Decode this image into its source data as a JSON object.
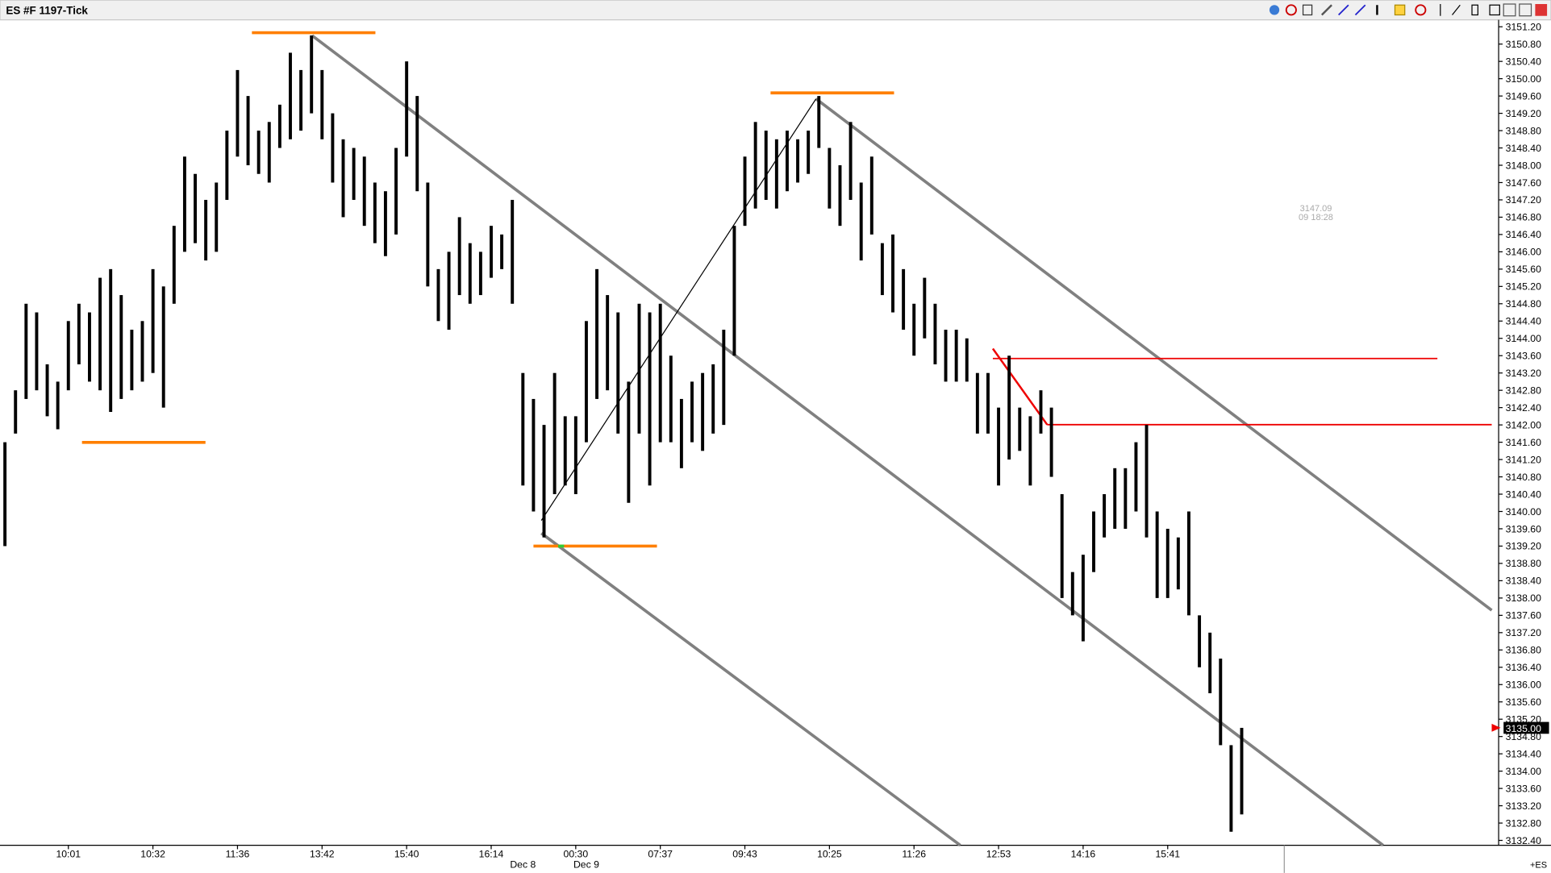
{
  "chart_data": {
    "type": "range-bar",
    "title": "ES #F 1197-Tick",
    "footer": "+ES",
    "annotation": [
      "3147.09",
      "09 18:28"
    ],
    "last_price": {
      "value": 3135,
      "label": "3135.00"
    },
    "color": "#000000",
    "ylim": [
      3132.31,
      3151.36
    ],
    "yticks": [
      {
        "value": 3132.4,
        "label": "3132.40"
      },
      {
        "value": 3132.8,
        "label": "3132.80"
      },
      {
        "value": 3133.2,
        "label": "3133.20"
      },
      {
        "value": 3133.6,
        "label": "3133.60"
      },
      {
        "value": 3134,
        "label": "3134.00"
      },
      {
        "value": 3134.4,
        "label": "3134.40"
      },
      {
        "value": 3134.8,
        "label": "3134.80"
      },
      {
        "value": 3135.2,
        "label": "3135.20"
      },
      {
        "value": 3135.6,
        "label": "3135.60"
      },
      {
        "value": 3136,
        "label": "3136.00"
      },
      {
        "value": 3136.4,
        "label": "3136.40"
      },
      {
        "value": 3136.8,
        "label": "3136.80"
      },
      {
        "value": 3137.2,
        "label": "3137.20"
      },
      {
        "value": 3137.6,
        "label": "3137.60"
      },
      {
        "value": 3138,
        "label": "3138.00"
      },
      {
        "value": 3138.4,
        "label": "3138.40"
      },
      {
        "value": 3138.8,
        "label": "3138.80"
      },
      {
        "value": 3139.2,
        "label": "3139.20"
      },
      {
        "value": 3139.6,
        "label": "3139.60"
      },
      {
        "value": 3140,
        "label": "3140.00"
      },
      {
        "value": 3140.4,
        "label": "3140.40"
      },
      {
        "value": 3140.8,
        "label": "3140.80"
      },
      {
        "value": 3141.2,
        "label": "3141.20"
      },
      {
        "value": 3141.6,
        "label": "3141.60"
      },
      {
        "value": 3142,
        "label": "3142.00"
      },
      {
        "value": 3142.4,
        "label": "3142.40"
      },
      {
        "value": 3142.8,
        "label": "3142.80"
      },
      {
        "value": 3143.2,
        "label": "3143.20"
      },
      {
        "value": 3143.6,
        "label": "3143.60"
      },
      {
        "value": 3144,
        "label": "3144.00"
      },
      {
        "value": 3144.4,
        "label": "3144.40"
      },
      {
        "value": 3144.8,
        "label": "3144.80"
      },
      {
        "value": 3145.2,
        "label": "3145.20"
      },
      {
        "value": 3145.6,
        "label": "3145.60"
      },
      {
        "value": 3146,
        "label": "3146.00"
      },
      {
        "value": 3146.4,
        "label": "3146.40"
      },
      {
        "value": 3146.8,
        "label": "3146.80"
      },
      {
        "value": 3147.2,
        "label": "3147.20"
      },
      {
        "value": 3147.6,
        "label": "3147.60"
      },
      {
        "value": 3148,
        "label": "3148.00"
      },
      {
        "value": 3148.4,
        "label": "3148.40"
      },
      {
        "value": 3148.8,
        "label": "3148.80"
      },
      {
        "value": 3149.2,
        "label": "3149.20"
      },
      {
        "value": 3149.6,
        "label": "3149.60"
      },
      {
        "value": 3150,
        "label": "3150.00"
      },
      {
        "value": 3150.4,
        "label": "3150.40"
      },
      {
        "value": 3150.8,
        "label": "3150.80"
      },
      {
        "value": 3151.2,
        "label": "3151.20"
      }
    ],
    "categories": [
      null,
      null,
      null,
      null,
      null,
      null,
      "10:01",
      null,
      null,
      null,
      null,
      null,
      null,
      null,
      "10:32",
      null,
      null,
      null,
      null,
      null,
      null,
      null,
      "11:36",
      null,
      null,
      null,
      null,
      null,
      null,
      null,
      "13:42",
      null,
      null,
      null,
      null,
      null,
      null,
      null,
      "15:40",
      null,
      null,
      null,
      null,
      null,
      null,
      null,
      "16:14",
      null,
      null,
      null,
      null,
      null,
      null,
      null,
      "00:30",
      null,
      null,
      null,
      null,
      null,
      null,
      null,
      "07:37",
      null,
      null,
      null,
      null,
      null,
      null,
      null,
      "09:43",
      null,
      null,
      null,
      null,
      null,
      null,
      null,
      "10:25",
      null,
      null,
      null,
      null,
      null,
      null,
      null,
      "11:26",
      null,
      null,
      null,
      null,
      null,
      null,
      null,
      "12:53",
      null,
      null,
      null,
      null,
      null,
      null,
      null,
      "14:16",
      null,
      null,
      null,
      null,
      null,
      null,
      null,
      "15:41",
      null,
      null,
      null,
      null,
      null,
      null,
      null
    ],
    "dates": [
      null,
      null,
      null,
      null,
      null,
      null,
      null,
      null,
      null,
      null,
      null,
      null,
      null,
      null,
      null,
      null,
      null,
      null,
      null,
      null,
      null,
      null,
      null,
      null,
      null,
      null,
      null,
      null,
      null,
      null,
      null,
      null,
      null,
      null,
      null,
      null,
      null,
      null,
      null,
      null,
      null,
      null,
      null,
      null,
      null,
      null,
      null,
      null,
      null,
      "Dec 8",
      null,
      null,
      null,
      null,
      null,
      "Dec 9",
      null,
      null,
      null,
      null,
      null,
      null,
      null,
      null,
      null,
      null,
      null,
      null,
      null,
      null,
      null,
      null,
      null,
      null,
      null,
      null,
      null,
      null,
      null,
      null,
      null,
      null,
      null,
      null,
      null,
      null,
      null,
      null,
      null,
      null,
      null,
      null,
      null,
      null,
      null,
      null,
      null,
      null,
      null,
      null,
      null,
      null,
      null,
      null,
      null,
      null,
      null,
      null,
      null,
      null,
      null,
      null,
      null,
      null,
      null,
      null,
      null,
      null
    ],
    "series": [
      {
        "name": "High",
        "values": [
          3141.6,
          3142.8,
          3144.8,
          3144.6,
          3143.4,
          3143.0,
          3144.4,
          3144.8,
          3144.6,
          3145.4,
          3145.6,
          3145.0,
          3144.2,
          3144.4,
          3145.6,
          3145.2,
          3146.6,
          3148.2,
          3147.8,
          3147.2,
          3147.6,
          3148.8,
          3150.2,
          3149.6,
          3148.8,
          3149.0,
          3149.4,
          3150.6,
          3150.2,
          3151.0,
          3150.2,
          3149.2,
          3148.6,
          3148.4,
          3148.2,
          3147.6,
          3147.4,
          3148.4,
          3150.4,
          3149.6,
          3147.6,
          3145.6,
          3146.0,
          3146.8,
          3146.2,
          3146.0,
          3146.6,
          3146.4,
          3147.2,
          3143.2,
          3142.6,
          3142.0,
          3143.2,
          3142.2,
          3142.2,
          3144.4,
          3145.6,
          3145.0,
          3144.6,
          3143.0,
          3144.8,
          3144.6,
          3144.8,
          3143.6,
          3142.6,
          3143.0,
          3143.2,
          3143.4,
          3144.2,
          3146.6,
          3148.2,
          3149.0,
          3148.8,
          3148.6,
          3148.8,
          3148.6,
          3148.8,
          3149.6,
          3148.4,
          3148.0,
          3149.0,
          3147.6,
          3148.2,
          3146.2,
          3146.4,
          3145.6,
          3144.8,
          3145.4,
          3144.8,
          3144.2,
          3144.2,
          3144.0,
          3143.2,
          3143.2,
          3142.4,
          3143.6,
          3142.4,
          3142.2,
          3142.8,
          3142.4,
          3140.4,
          3138.6,
          3139.0,
          3140.0,
          3140.4,
          3141.0,
          3141.0,
          3141.6,
          3142.0,
          3140.0,
          3139.6,
          3139.4,
          3140.0,
          3137.6,
          3137.2,
          3136.6,
          3134.6,
          3135.0
        ]
      },
      {
        "name": "Low",
        "values": [
          3139.2,
          3141.8,
          3142.6,
          3142.8,
          3142.2,
          3141.9,
          3142.8,
          3143.4,
          3143.0,
          3142.8,
          3142.3,
          3142.6,
          3142.8,
          3143.0,
          3143.2,
          3142.4,
          3144.8,
          3146.0,
          3146.2,
          3145.8,
          3146.0,
          3147.2,
          3148.2,
          3148.0,
          3147.8,
          3147.6,
          3148.4,
          3148.6,
          3148.8,
          3149.2,
          3148.6,
          3147.6,
          3146.8,
          3147.2,
          3146.6,
          3146.2,
          3145.9,
          3146.4,
          3148.2,
          3147.4,
          3145.2,
          3144.4,
          3144.2,
          3145.0,
          3144.8,
          3145.0,
          3145.4,
          3145.6,
          3144.8,
          3140.6,
          3140.0,
          3139.4,
          3140.4,
          3140.6,
          3140.4,
          3141.6,
          3142.6,
          3142.8,
          3141.8,
          3140.2,
          3141.8,
          3140.6,
          3141.6,
          3141.6,
          3141.0,
          3141.6,
          3141.4,
          3141.8,
          3142.0,
          3143.6,
          3146.6,
          3147.0,
          3147.2,
          3147.0,
          3147.4,
          3147.6,
          3147.8,
          3148.4,
          3147.0,
          3146.6,
          3147.2,
          3145.8,
          3146.4,
          3145.0,
          3144.6,
          3144.2,
          3143.6,
          3144.0,
          3143.4,
          3143.0,
          3143.0,
          3143.0,
          3141.8,
          3141.8,
          3140.6,
          3141.2,
          3141.4,
          3140.6,
          3141.8,
          3140.8,
          3138.0,
          3137.6,
          3137.0,
          3138.6,
          3139.4,
          3139.6,
          3139.6,
          3140.0,
          3139.4,
          3138.0,
          3138.0,
          3138.2,
          3137.6,
          3136.4,
          3135.8,
          3134.6,
          3132.6,
          3133.0
        ]
      }
    ]
  }
}
